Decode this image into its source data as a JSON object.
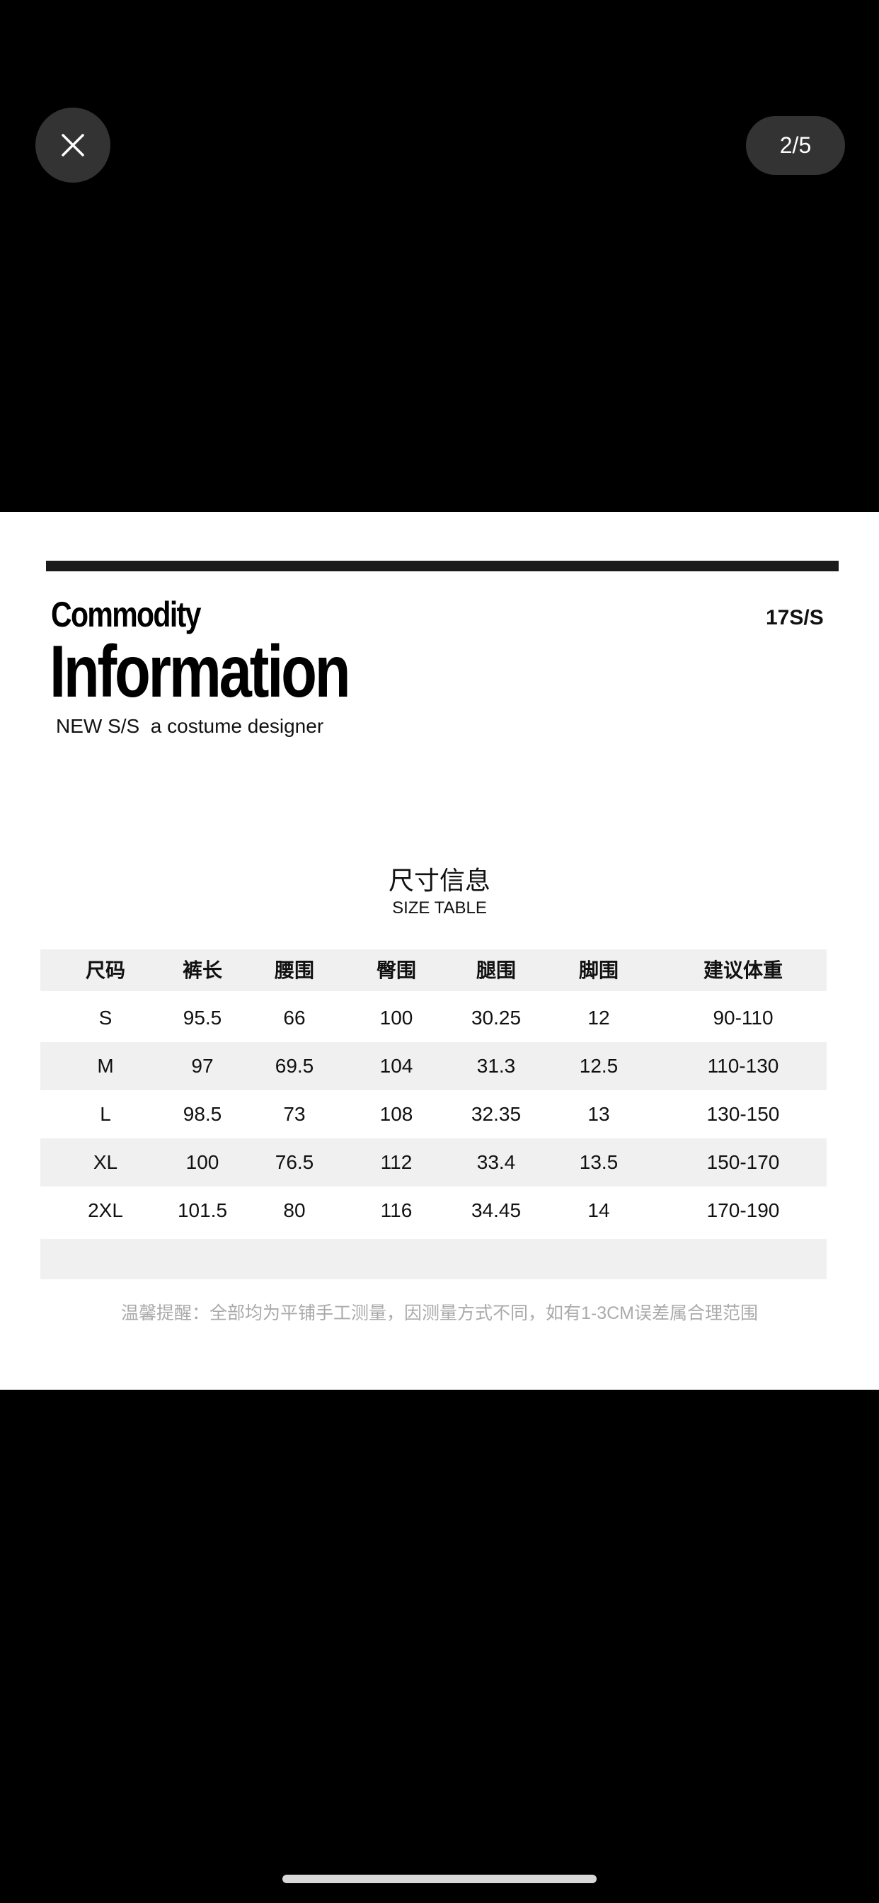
{
  "viewer": {
    "counter": "2/5",
    "close_icon": "x-icon"
  },
  "image": {
    "heading_small": "Commodity",
    "heading_large": "Information",
    "subtitle": "NEW S/S  a costume designer",
    "season": "17S/S",
    "title_cn": "尺寸信息",
    "title_en": "SIZE TABLE",
    "table": {
      "headers": [
        "尺码",
        "裤长",
        "腰围",
        "臀围",
        "腿围",
        "脚围",
        "建议体重"
      ],
      "rows": [
        [
          "S",
          "95.5",
          "66",
          "100",
          "30.25",
          "12",
          "90-110"
        ],
        [
          "M",
          "97",
          "69.5",
          "104",
          "31.3",
          "12.5",
          "110-130"
        ],
        [
          "L",
          "98.5",
          "73",
          "108",
          "32.35",
          "13",
          "130-150"
        ],
        [
          "XL",
          "100",
          "76.5",
          "112",
          "33.4",
          "13.5",
          "150-170"
        ],
        [
          "2XL",
          "101.5",
          "80",
          "116",
          "34.45",
          "14",
          "170-190"
        ]
      ]
    },
    "note": "温馨提醒：全部均为平铺手工测量，因测量方式不同，如有1-3CM误差属合理范围"
  }
}
